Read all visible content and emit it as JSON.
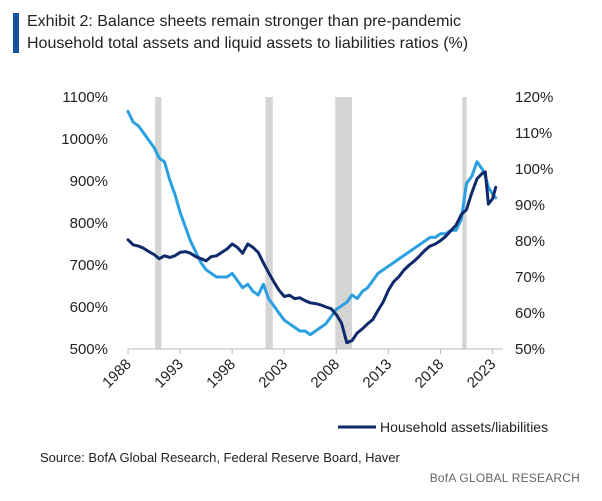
{
  "chart_data": {
    "type": "line",
    "title": "Exhibit 2: Balance sheets remain stronger than pre-pandemic",
    "subtitle": "Household total assets and liquid assets to liabilities ratios (%)",
    "x_ticks": [
      "1988",
      "1993",
      "1998",
      "2003",
      "2008",
      "2013",
      "2018",
      "2023"
    ],
    "xlim": [
      1988,
      2024
    ],
    "left_axis": {
      "ticks": [
        "500%",
        "600%",
        "700%",
        "800%",
        "900%",
        "1000%",
        "1100%"
      ],
      "ylim": [
        500,
        1100
      ]
    },
    "right_axis": {
      "ticks": [
        "50%",
        "60%",
        "70%",
        "80%",
        "90%",
        "100%",
        "110%",
        "120%"
      ],
      "ylim": [
        50,
        120
      ]
    },
    "recessions": [
      [
        1990.6,
        1991.2
      ],
      [
        2001.2,
        2001.9
      ],
      [
        2007.9,
        2009.5
      ],
      [
        2020.1,
        2020.5
      ]
    ],
    "legend": {
      "placement": "bottom-right",
      "entries": [
        "Household assets/liabilities"
      ]
    },
    "series": [
      {
        "name": "Household assets/liabilities",
        "axis": "left",
        "color": "#0f2a6b",
        "x": [
          1988.0,
          1988.5,
          1989.0,
          1989.5,
          1990.0,
          1990.5,
          1991.0,
          1991.5,
          1992.0,
          1992.5,
          1993.0,
          1993.5,
          1994.0,
          1994.5,
          1995.0,
          1995.5,
          1996.0,
          1996.5,
          1997.0,
          1997.5,
          1998.0,
          1998.5,
          1999.0,
          1999.5,
          2000.0,
          2000.5,
          2001.0,
          2001.5,
          2002.0,
          2002.5,
          2003.0,
          2003.5,
          2004.0,
          2004.5,
          2005.0,
          2005.5,
          2006.0,
          2006.5,
          2007.0,
          2007.5,
          2008.0,
          2008.5,
          2009.0,
          2009.5,
          2010.0,
          2010.5,
          2011.0,
          2011.5,
          2012.0,
          2012.5,
          2013.0,
          2013.5,
          2014.0,
          2014.5,
          2015.0,
          2015.5,
          2016.0,
          2016.5,
          2017.0,
          2017.5,
          2018.0,
          2018.5,
          2019.0,
          2019.5,
          2020.0,
          2020.5,
          2021.0,
          2021.5,
          2022.0,
          2022.3,
          2022.6,
          2023.0,
          2023.3
        ],
        "values": [
          760,
          748,
          745,
          740,
          732,
          725,
          715,
          722,
          718,
          722,
          730,
          732,
          728,
          720,
          715,
          710,
          720,
          722,
          730,
          738,
          750,
          742,
          728,
          750,
          742,
          730,
          705,
          682,
          660,
          640,
          625,
          628,
          620,
          622,
          615,
          610,
          608,
          605,
          600,
          596,
          582,
          562,
          515,
          520,
          538,
          548,
          560,
          570,
          592,
          612,
          640,
          660,
          672,
          688,
          700,
          710,
          722,
          735,
          745,
          750,
          758,
          768,
          782,
          795,
          820,
          832,
          872,
          905,
          918,
          922,
          845,
          858,
          885
        ]
      },
      {
        "axis": "right",
        "color": "#2aa0e0",
        "x": [
          1988.0,
          1988.5,
          1989.0,
          1989.5,
          1990.0,
          1990.5,
          1991.0,
          1991.5,
          1992.0,
          1992.5,
          1993.0,
          1993.5,
          1994.0,
          1994.5,
          1995.0,
          1995.5,
          1996.0,
          1996.5,
          1997.0,
          1997.5,
          1998.0,
          1998.5,
          1999.0,
          1999.5,
          2000.0,
          2000.5,
          2001.0,
          2001.5,
          2002.0,
          2002.5,
          2003.0,
          2003.5,
          2004.0,
          2004.5,
          2005.0,
          2005.5,
          2006.0,
          2006.5,
          2007.0,
          2007.5,
          2008.0,
          2008.5,
          2009.0,
          2009.5,
          2010.0,
          2010.5,
          2011.0,
          2011.5,
          2012.0,
          2012.5,
          2013.0,
          2013.5,
          2014.0,
          2014.5,
          2015.0,
          2015.5,
          2016.0,
          2016.5,
          2017.0,
          2017.5,
          2018.0,
          2018.5,
          2019.0,
          2019.5,
          2020.0,
          2020.5,
          2021.0,
          2021.5,
          2022.0,
          2022.3,
          2022.6,
          2023.0,
          2023.3
        ],
        "values": [
          116,
          113,
          112,
          110,
          108,
          106,
          103,
          102,
          97,
          93,
          88,
          84,
          80,
          77,
          74,
          72,
          71,
          70,
          70,
          70,
          71,
          69,
          67,
          68,
          66,
          65,
          68,
          64,
          62,
          60,
          58,
          57,
          56,
          55,
          55,
          54,
          55,
          56,
          57,
          59,
          61,
          62,
          63,
          65,
          64,
          66,
          67,
          69,
          71,
          72,
          73,
          74,
          75,
          76,
          77,
          78,
          79,
          80,
          81,
          81,
          82,
          82,
          83,
          83,
          86,
          96,
          98,
          102,
          100,
          98,
          95,
          93,
          92
        ]
      }
    ]
  },
  "source": "Source: BofA Global Research, Federal Reserve Board, Haver",
  "brand": "BofA GLOBAL RESEARCH"
}
